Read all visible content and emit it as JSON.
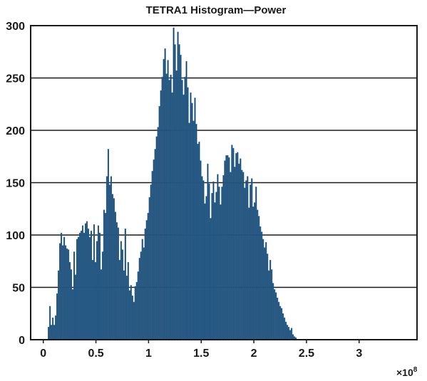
{
  "chart_data": {
    "type": "bar",
    "title": "TETRA1 Histogram—Power",
    "xlabel": "",
    "ylabel": "",
    "x_multiplier": {
      "base": "×10",
      "exponent": "8"
    },
    "xlim": [
      -0.12,
      3.55
    ],
    "ylim": [
      0,
      300
    ],
    "xticks": [
      0,
      0.5,
      1,
      1.5,
      2,
      2.5,
      3
    ],
    "xtick_labels": [
      "0",
      "0.5",
      "1",
      "1.5",
      "2",
      "2.5",
      "3"
    ],
    "yticks": [
      0,
      50,
      100,
      150,
      200,
      250,
      300
    ],
    "ytick_labels": [
      "0",
      "50",
      "100",
      "150",
      "200",
      "250",
      "300"
    ],
    "grid": "horizontal",
    "bin_width": 0.0135,
    "bar_color": "#1b3a57",
    "bar_edge_color": "#2e78b4",
    "bins_x_start": 0.045,
    "values": [
      12,
      32,
      14,
      21,
      14,
      23,
      44,
      66,
      92,
      102,
      90,
      98,
      90,
      87,
      86,
      74,
      67,
      48,
      84,
      62,
      96,
      98,
      102,
      104,
      109,
      102,
      111,
      113,
      106,
      98,
      104,
      76,
      110,
      74,
      94,
      109,
      102,
      67,
      84,
      124,
      121,
      156,
      182,
      148,
      156,
      139,
      135,
      122,
      112,
      107,
      76,
      94,
      86,
      66,
      106,
      61,
      74,
      47,
      52,
      42,
      36,
      51,
      55,
      65,
      78,
      84,
      96,
      88,
      106,
      114,
      121,
      136,
      148,
      161,
      172,
      182,
      194,
      203,
      223,
      238,
      251,
      268,
      278,
      254,
      267,
      248,
      253,
      236,
      298,
      282,
      257,
      294,
      282,
      272,
      248,
      234,
      251,
      266,
      241,
      207,
      236,
      226,
      209,
      231,
      206,
      187,
      189,
      171,
      156,
      152,
      130,
      137,
      168,
      149,
      116,
      140,
      151,
      131,
      141,
      158,
      146,
      129,
      146,
      157,
      171,
      176,
      176,
      174,
      160,
      186,
      183,
      165,
      178,
      179,
      168,
      173,
      162,
      160,
      145,
      152,
      156,
      126,
      148,
      154,
      127,
      131,
      146,
      124,
      118,
      108,
      103,
      96,
      88,
      93,
      82,
      66,
      76,
      67,
      54,
      48,
      45,
      40,
      36,
      32,
      30,
      25,
      21,
      17,
      14,
      12,
      9,
      11,
      5,
      3,
      2
    ]
  }
}
